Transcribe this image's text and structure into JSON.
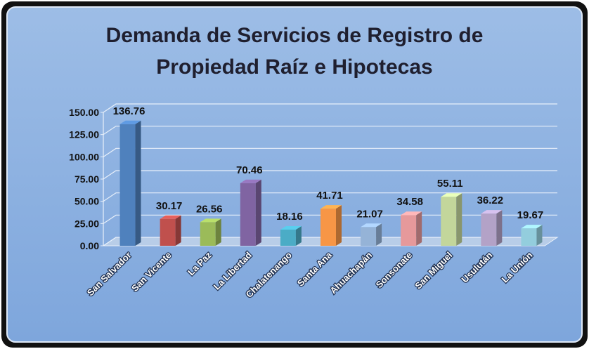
{
  "chart_data": {
    "type": "bar3d",
    "title": "Demanda de Servicios de Registro de Propiedad Raíz e Hipotecas",
    "categories": [
      "San Salvador",
      "San Vicente",
      "La Paz",
      "La Libertad",
      "Chalatenango",
      "Santa Ana",
      "Ahuachapán",
      "Sonsonate",
      "San Miguel",
      "Usulután",
      "La Unión"
    ],
    "values": [
      136.76,
      30.17,
      26.56,
      70.46,
      18.16,
      41.71,
      21.07,
      34.58,
      55.11,
      36.22,
      19.67
    ],
    "colors": [
      "#4f81bd",
      "#c0504d",
      "#9bbb59",
      "#8064a2",
      "#4bacc6",
      "#f79646",
      "#95b3d7",
      "#e6999b",
      "#c3d69b",
      "#b3a2c7",
      "#93cddd"
    ],
    "ylim": [
      0,
      150
    ],
    "yticks": [
      {
        "value": 0,
        "label": "0.00"
      },
      {
        "value": 25,
        "label": "25.00"
      },
      {
        "value": 50,
        "label": "50.00"
      },
      {
        "value": 75,
        "label": "75.00"
      },
      {
        "value": 100,
        "label": "100.00"
      },
      {
        "value": 125,
        "label": "125.00"
      },
      {
        "value": 150,
        "label": "150.00"
      }
    ],
    "grid": true
  }
}
